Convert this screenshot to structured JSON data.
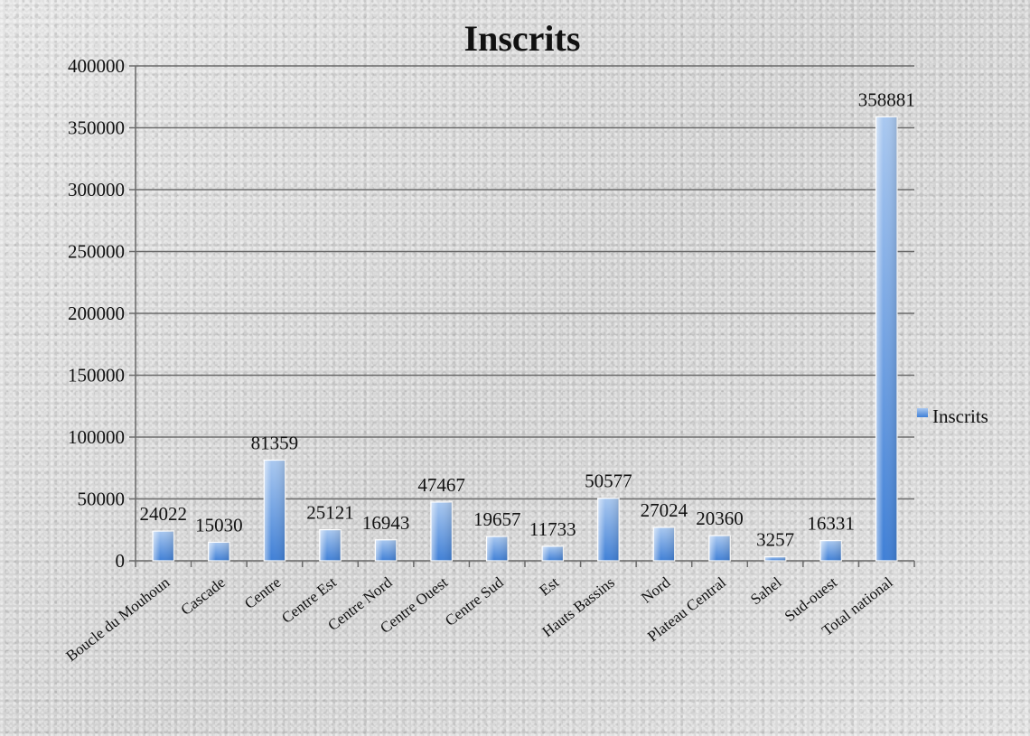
{
  "chart_data": {
    "type": "bar",
    "title": "Inscrits",
    "xlabel": "",
    "ylabel": "",
    "ylim": [
      0,
      400000
    ],
    "yticks": [
      0,
      50000,
      100000,
      150000,
      200000,
      250000,
      300000,
      350000,
      400000
    ],
    "grid": true,
    "legend_position": "right",
    "categories": [
      "Boucle du Mouhoun",
      "Cascade",
      "Centre",
      "Centre Est",
      "Centre Nord",
      "Centre Ouest",
      "Centre Sud",
      "Est",
      "Hauts Bassins",
      "Nord",
      "Plateau Central",
      "Sahel",
      "Sud-ouest",
      "Total national"
    ],
    "series": [
      {
        "name": "Inscrits",
        "color": "#4f81bd",
        "values": [
          24022,
          15030,
          81359,
          25121,
          16943,
          47467,
          19657,
          11733,
          50577,
          27024,
          20360,
          3257,
          16331,
          358881
        ]
      }
    ]
  }
}
